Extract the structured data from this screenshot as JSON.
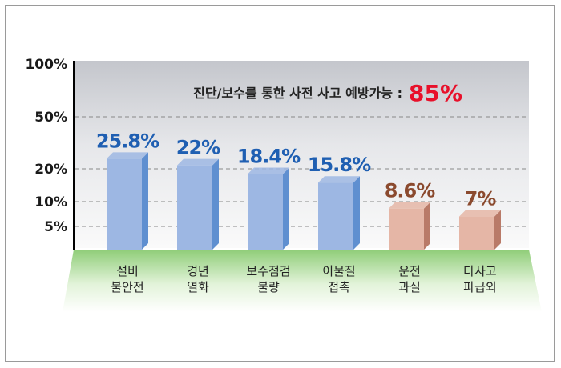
{
  "chart_data": {
    "type": "bar",
    "categories": [
      [
        "설비",
        "불안전"
      ],
      [
        "경년",
        "열화"
      ],
      [
        "보수점검",
        "불량"
      ],
      [
        "이물질",
        "접촉"
      ],
      [
        "운전",
        "과실"
      ],
      [
        "타사고",
        "파급외"
      ]
    ],
    "values": [
      25.8,
      22,
      18.4,
      15.8,
      8.6,
      7
    ],
    "data_labels": [
      "25.8%",
      "22%",
      "18.4%",
      "15.8%",
      "8.6%",
      "7%"
    ],
    "y_ticks": [
      {
        "value": 100,
        "label": "100%"
      },
      {
        "value": 50,
        "label": "50%"
      },
      {
        "value": 20,
        "label": "20%"
      },
      {
        "value": 10,
        "label": "10%"
      },
      {
        "value": 5,
        "label": "5%"
      }
    ],
    "annotation": {
      "text": "진단/보수를 통한 사전 사고 예방가능 :",
      "value": "85%"
    },
    "grid": true,
    "colors": {
      "bar_blue": "#9db7e3",
      "bar_blue_side": "#5f8fd0",
      "bar_pink": "#e5b6a6",
      "bar_pink_side": "#b97a68",
      "label_blue": "#1f5fb2",
      "label_brown": "#8b4a2e",
      "annotation_value": "#e8102a",
      "base_green": "#9fd48a"
    },
    "bar_color_groups": [
      "blue",
      "blue",
      "blue",
      "blue",
      "pink",
      "pink"
    ]
  }
}
